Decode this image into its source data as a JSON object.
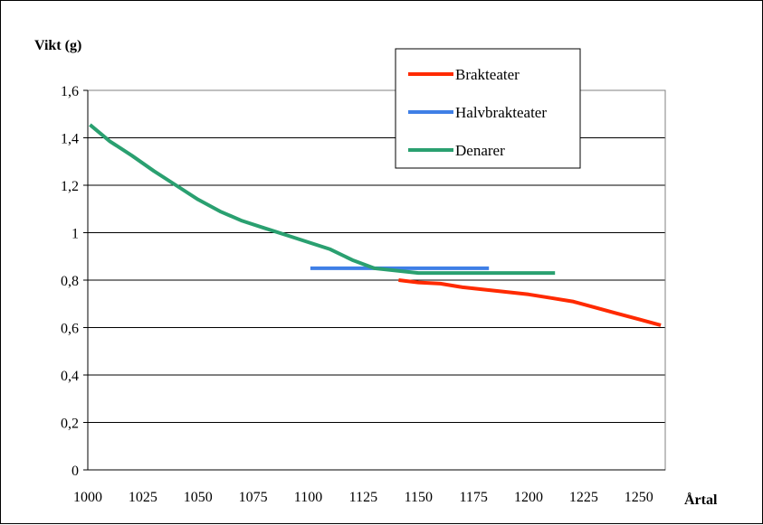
{
  "chart_data": {
    "type": "line",
    "title": "",
    "ylabel": "Vikt (g)",
    "xlabel": "Årtal",
    "xlim": [
      1000,
      1262
    ],
    "ylim": [
      0,
      1.6
    ],
    "xticks": [
      1000,
      1025,
      1050,
      1075,
      1100,
      1125,
      1150,
      1175,
      1200,
      1225,
      1250
    ],
    "xtick_labels": [
      "1000",
      "1025",
      "1050",
      "1075",
      "1100",
      "1125",
      "1150",
      "1175",
      "1200",
      "1225",
      "1250"
    ],
    "yticks": [
      0,
      0.2,
      0.4,
      0.6,
      0.8,
      1.0,
      1.2,
      1.4,
      1.6
    ],
    "ytick_labels": [
      "0",
      "0,2",
      "0,4",
      "0,6",
      "0,8",
      "1",
      "1,2",
      "1,4",
      "1,6"
    ],
    "grid": true,
    "legend_position": "top-right",
    "series": [
      {
        "name": "Brakteater",
        "color": "#ff2a00",
        "x": [
          1141,
          1150,
          1160,
          1170,
          1180,
          1190,
          1200,
          1210,
          1220,
          1230,
          1240,
          1250,
          1260
        ],
        "y": [
          0.8,
          0.79,
          0.785,
          0.77,
          0.76,
          0.75,
          0.74,
          0.725,
          0.71,
          0.685,
          0.66,
          0.635,
          0.61
        ]
      },
      {
        "name": "Halvbrakteater",
        "color": "#3f7fe6",
        "x": [
          1101,
          1182
        ],
        "y": [
          0.85,
          0.85
        ]
      },
      {
        "name": "Denarer",
        "color": "#2aa070",
        "x": [
          1001,
          1010,
          1020,
          1030,
          1040,
          1050,
          1060,
          1070,
          1080,
          1090,
          1100,
          1110,
          1120,
          1130,
          1140,
          1150,
          1160,
          1170,
          1180,
          1190,
          1200,
          1212
        ],
        "y": [
          1.455,
          1.385,
          1.325,
          1.26,
          1.2,
          1.14,
          1.09,
          1.05,
          1.02,
          0.99,
          0.96,
          0.93,
          0.885,
          0.85,
          0.84,
          0.83,
          0.83,
          0.83,
          0.83,
          0.83,
          0.83,
          0.83
        ]
      }
    ]
  }
}
